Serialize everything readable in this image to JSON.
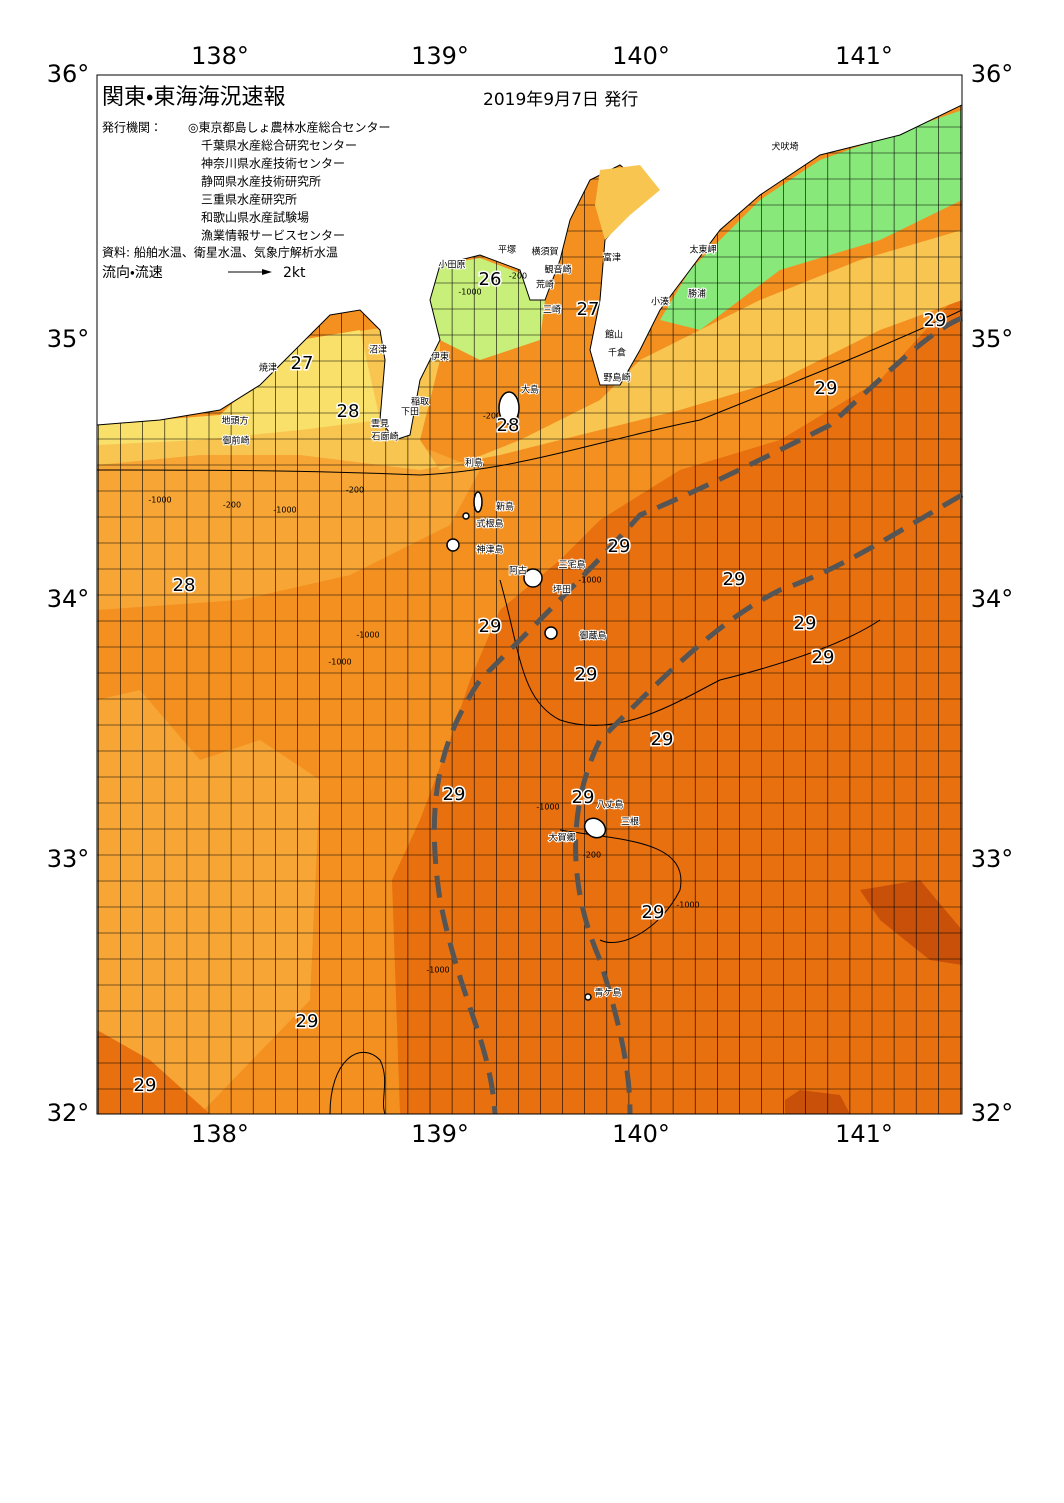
{
  "header": {
    "title": "関東・東海海況速報",
    "date": "2019年9月7日 発行"
  },
  "issuers": {
    "label": "発行機関：",
    "items": [
      "◎東京都島しょ農林水産総合センター",
      "千葉県水産総合研究センター",
      "神奈川県水産技術センター",
      "静岡県水産技術研究所",
      "三重県水産研究所",
      "和歌山県水産試験場",
      "漁業情報サービスセンター"
    ]
  },
  "source": "資料: 船舶水温、衛星水温、気象庁解析水温",
  "legend": {
    "label": "流向・流速",
    "speed": "2kt"
  },
  "axes": {
    "lon": [
      "138°",
      "139°",
      "140°",
      "141°"
    ],
    "lat": [
      "36°",
      "35°",
      "34°",
      "33°",
      "32°"
    ]
  },
  "temperature_labels": [
    "26",
    "27",
    "27",
    "28",
    "28",
    "29",
    "29",
    "28",
    "29",
    "29",
    "29",
    "29",
    "29",
    "29",
    "29",
    "29",
    "29",
    "29",
    "29",
    "29"
  ],
  "place_names": [
    "小田原",
    "平塚",
    "横須賀",
    "観音崎",
    "富津",
    "荒崎",
    "三崎",
    "館山",
    "千倉",
    "野島崎",
    "小湊",
    "勝浦",
    "太東岬",
    "犬吠埼",
    "沼津",
    "焼津",
    "伊東",
    "稲取",
    "下田",
    "雲見",
    "石廊崎",
    "地頭方",
    "御前崎",
    "大島",
    "利島",
    "新島",
    "式根島",
    "神津島",
    "三宅島",
    "阿古",
    "坪田",
    "御蔵島",
    "八丈島",
    "三根",
    "大賀郷",
    "青ケ島"
  ],
  "depth_labels": [
    "-200",
    "-1000",
    "-200",
    "-1000",
    "-200",
    "-1000",
    "-200",
    "-1000",
    "-1000",
    "-1000",
    "-1000",
    "-200",
    "-1000",
    "-1000"
  ]
}
